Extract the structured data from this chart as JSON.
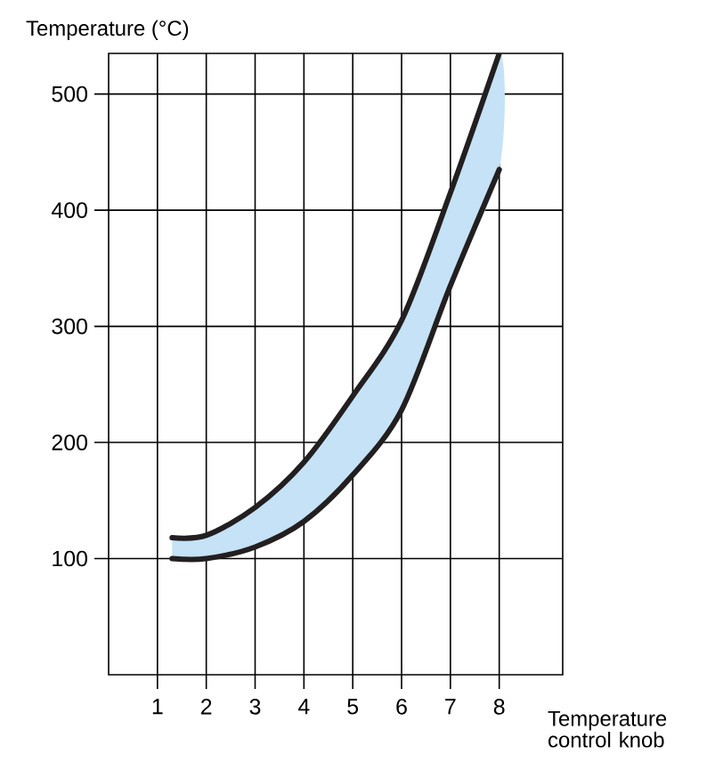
{
  "chart_data": {
    "type": "line",
    "ylabel": "Temperature (°C)",
    "xlabel": "Temperature control knob",
    "x": [
      1.3,
      2,
      3,
      4,
      5,
      6,
      7,
      8
    ],
    "series": [
      {
        "color": "#231f20",
        "values": [
          100,
          100,
          110,
          132,
          172,
          228,
          335,
          435
        ],
        "lower": [
          100,
          100,
          110,
          132,
          172,
          228,
          335,
          435
        ],
        "upper": [
          118,
          120,
          144,
          183,
          240,
          305,
          415,
          535
        ]
      },
      {
        "color": "#231f20",
        "values": [
          118,
          120,
          144,
          183,
          240,
          305,
          415,
          535
        ]
      }
    ],
    "xlim": [
      0,
      9.3
    ],
    "ylim": [
      0,
      535
    ],
    "xticks": [
      1,
      2,
      3,
      4,
      5,
      6,
      7,
      8
    ],
    "yticks": [
      100,
      200,
      300,
      400,
      500
    ],
    "grid": true,
    "marker": "none",
    "line_style": "solid"
  }
}
